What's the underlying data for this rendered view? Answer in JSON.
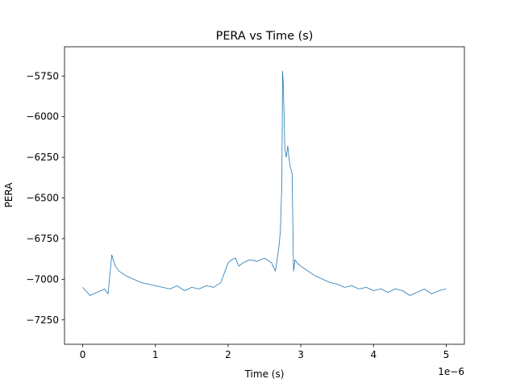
{
  "chart_data": {
    "type": "line",
    "title": "PERA vs Time (s)",
    "xlabel": "Time (s)",
    "ylabel": "PERA",
    "x_offset_label": "1e−6",
    "xlim": [
      -2.5e-07,
      5.25e-06
    ],
    "ylim": [
      -7400,
      -5570
    ],
    "x_ticks": [
      {
        "value": 0,
        "label": "0"
      },
      {
        "value": 1e-06,
        "label": "1"
      },
      {
        "value": 2e-06,
        "label": "2"
      },
      {
        "value": 3e-06,
        "label": "3"
      },
      {
        "value": 4e-06,
        "label": "4"
      },
      {
        "value": 5e-06,
        "label": "5"
      }
    ],
    "y_ticks": [
      {
        "value": -7250,
        "label": "−7250"
      },
      {
        "value": -7000,
        "label": "−7000"
      },
      {
        "value": -6750,
        "label": "−6750"
      },
      {
        "value": -6500,
        "label": "−6500"
      },
      {
        "value": -6250,
        "label": "−6250"
      },
      {
        "value": -6000,
        "label": "−6000"
      },
      {
        "value": -5750,
        "label": "−5750"
      }
    ],
    "grid": false,
    "series": [
      {
        "color": "#1f77b4",
        "x": [
          0,
          1e-07,
          2e-07,
          3e-07,
          3.5e-07,
          4e-07,
          4.2e-07,
          4.5e-07,
          5e-07,
          6e-07,
          7e-07,
          8e-07,
          9e-07,
          1e-06,
          1.1e-06,
          1.2e-06,
          1.3e-06,
          1.4e-06,
          1.5e-06,
          1.6e-06,
          1.7e-06,
          1.8e-06,
          1.9e-06,
          2e-06,
          2.05e-06,
          2.1e-06,
          2.15e-06,
          2.2e-06,
          2.3e-06,
          2.4e-06,
          2.5e-06,
          2.6e-06,
          2.65e-06,
          2.7e-06,
          2.72e-06,
          2.74e-06,
          2.75e-06,
          2.76e-06,
          2.78e-06,
          2.8e-06,
          2.82e-06,
          2.85e-06,
          2.88e-06,
          2.9e-06,
          2.92e-06,
          2.95e-06,
          3e-06,
          3.1e-06,
          3.2e-06,
          3.3e-06,
          3.4e-06,
          3.5e-06,
          3.6e-06,
          3.7e-06,
          3.8e-06,
          3.9e-06,
          4e-06,
          4.1e-06,
          4.2e-06,
          4.3e-06,
          4.4e-06,
          4.5e-06,
          4.6e-06,
          4.7e-06,
          4.8e-06,
          4.9e-06,
          5e-06
        ],
        "y": [
          -7050,
          -7100,
          -7080,
          -7060,
          -7090,
          -6850,
          -6880,
          -6920,
          -6950,
          -6980,
          -7000,
          -7020,
          -7030,
          -7040,
          -7050,
          -7060,
          -7040,
          -7070,
          -7050,
          -7060,
          -7040,
          -7050,
          -7020,
          -6900,
          -6880,
          -6870,
          -6920,
          -6900,
          -6880,
          -6890,
          -6870,
          -6900,
          -6950,
          -6800,
          -6700,
          -6400,
          -5720,
          -5800,
          -6200,
          -6250,
          -6180,
          -6300,
          -6350,
          -6950,
          -6880,
          -6900,
          -6920,
          -6950,
          -6980,
          -7000,
          -7020,
          -7030,
          -7050,
          -7040,
          -7060,
          -7050,
          -7070,
          -7060,
          -7080,
          -7060,
          -7070,
          -7100,
          -7080,
          -7060,
          -7090,
          -7070,
          -7060
        ]
      }
    ]
  }
}
